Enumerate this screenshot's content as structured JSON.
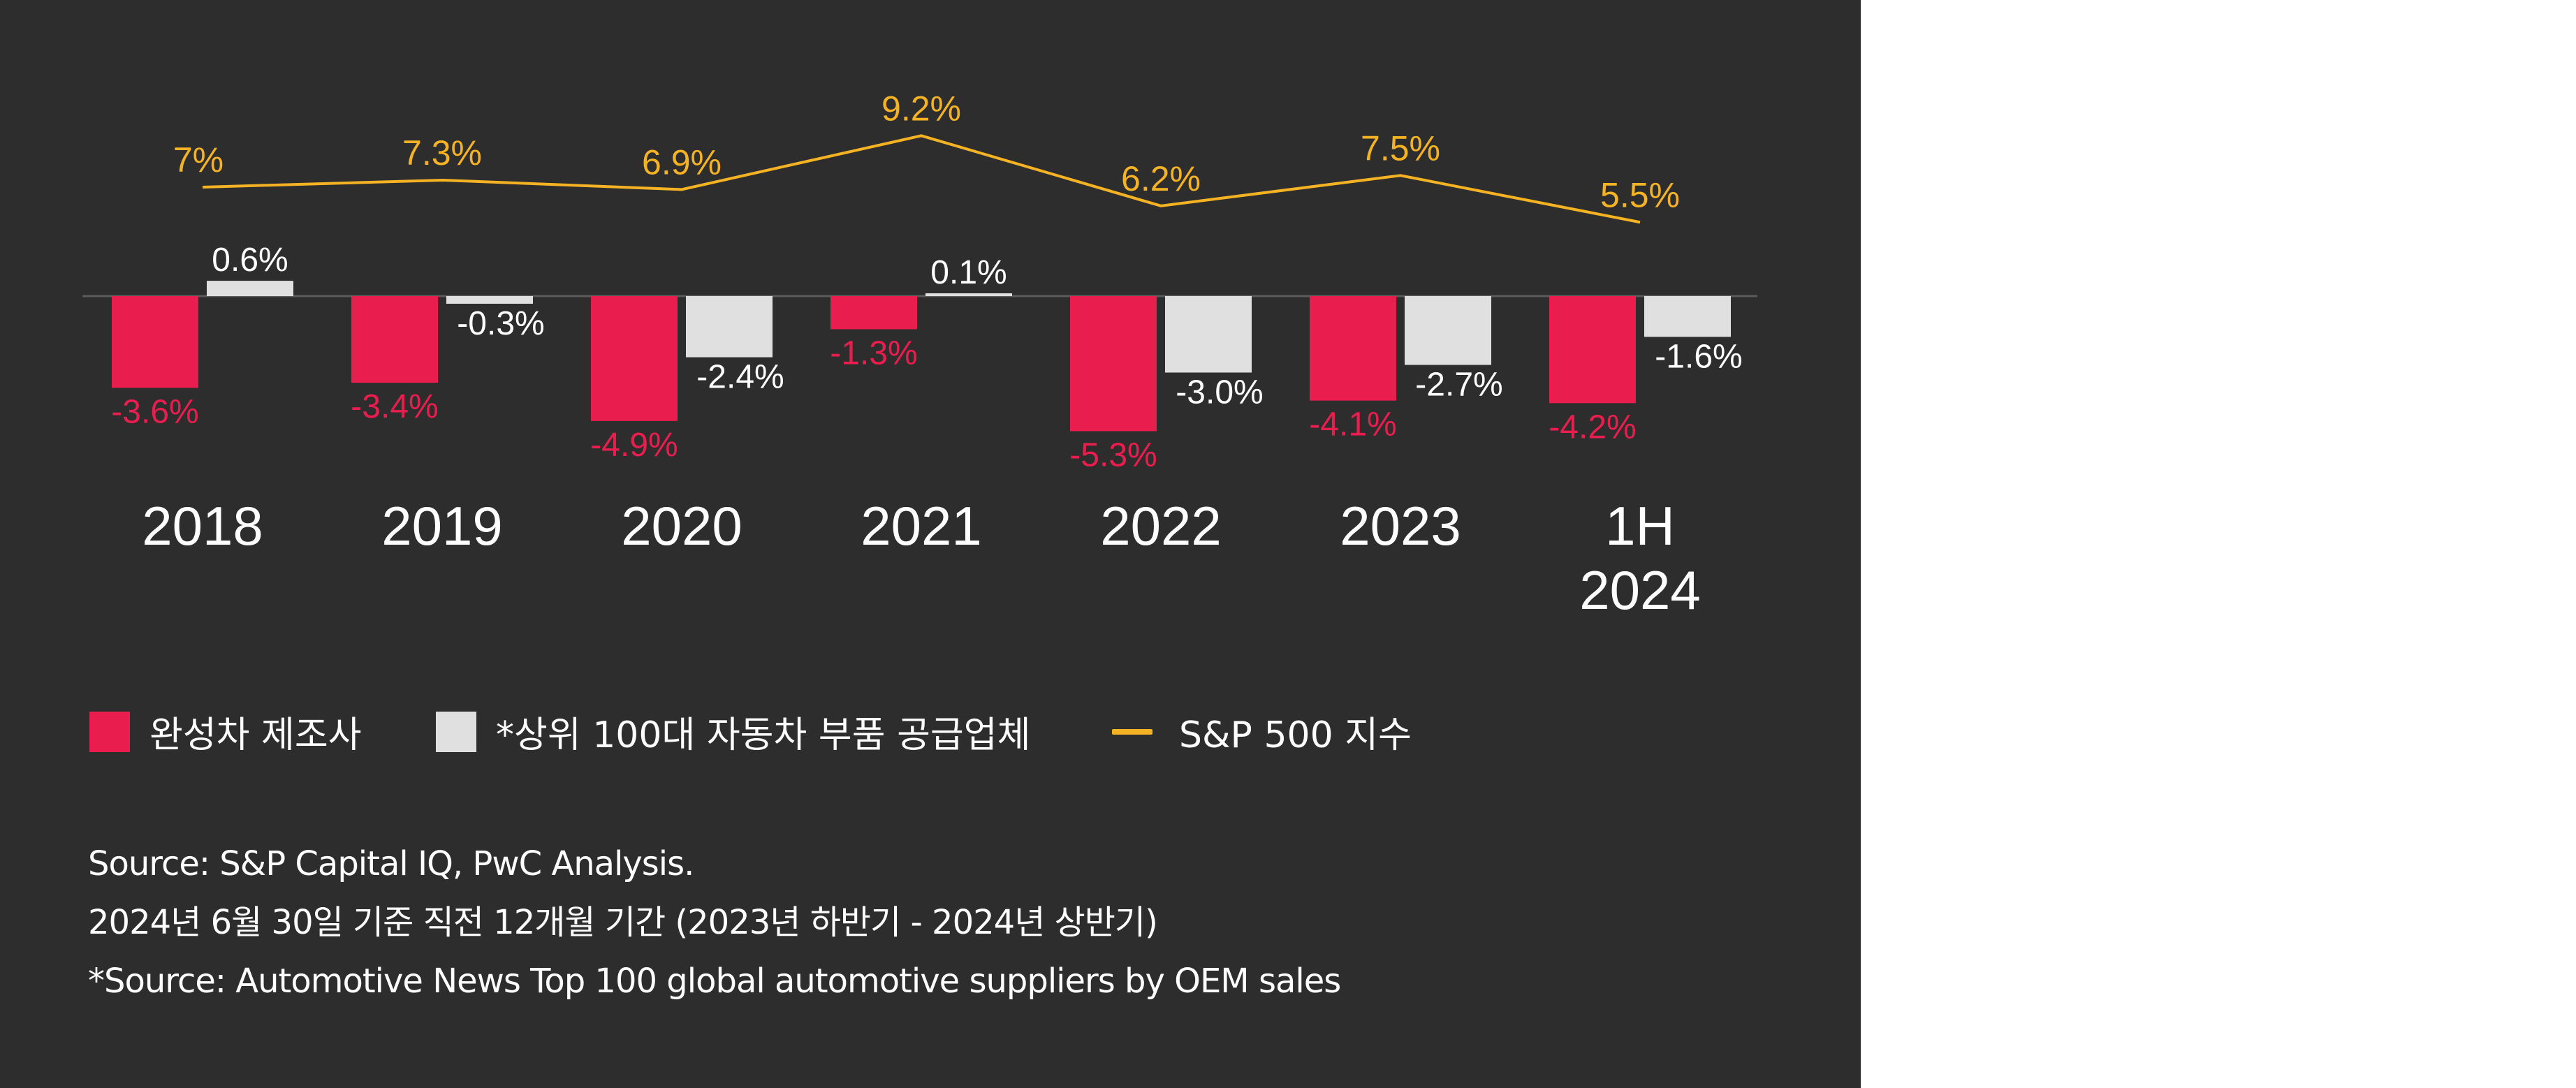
{
  "colors": {
    "background": "#2d2d2d",
    "manufacturers": "#ea1e4e",
    "suppliers": "#e0e0e0",
    "sp500": "#f5b324",
    "axis": "#5a5a5a",
    "text": "#ffffff"
  },
  "chart_data": {
    "type": "bar",
    "title": "",
    "categories": [
      "2018",
      "2019",
      "2020",
      "2021",
      "2022",
      "2023",
      "1H\n2024"
    ],
    "series": [
      {
        "name": "완성차 제조사",
        "type": "bar",
        "values": [
          -3.6,
          -3.4,
          -4.9,
          -1.3,
          -5.3,
          -4.1,
          -4.2
        ],
        "labels": [
          "-3.6%",
          "-3.4%",
          "-4.9%",
          "-1.3%",
          "-5.3%",
          "-4.1%",
          "-4.2%"
        ]
      },
      {
        "name": "*상위 100대 자동차 부품 공급업체",
        "type": "bar",
        "values": [
          0.6,
          -0.3,
          -2.4,
          0.1,
          -3.0,
          -2.7,
          -1.6
        ],
        "labels": [
          "0.6%",
          "-0.3%",
          "-2.4%",
          "0.1%",
          "-3.0%",
          "-2.7%",
          "-1.6%"
        ]
      },
      {
        "name": "S&P 500 지수",
        "type": "line",
        "values": [
          7.0,
          7.3,
          6.9,
          9.2,
          6.2,
          7.5,
          5.5
        ],
        "labels": [
          "7%",
          "7.3%",
          "6.9%",
          "9.2%",
          "6.2%",
          "7.5%",
          "5.5%"
        ]
      }
    ],
    "legend_position": "bottom-left",
    "grid": false
  },
  "legend": {
    "manufacturers": "완성차 제조사",
    "suppliers": "*상위 100대 자동차 부품 공급업체",
    "sp500": "S&P 500 지수"
  },
  "notes": {
    "line1": "Source: S&P Capital IQ, PwC Analysis.",
    "line2": "2024년 6월 30일 기준 직전 12개월 기간 (2023년 하반기 - 2024년 상반기)",
    "line3": "*Source: Automotive News Top 100 global automotive suppliers by OEM sales"
  }
}
